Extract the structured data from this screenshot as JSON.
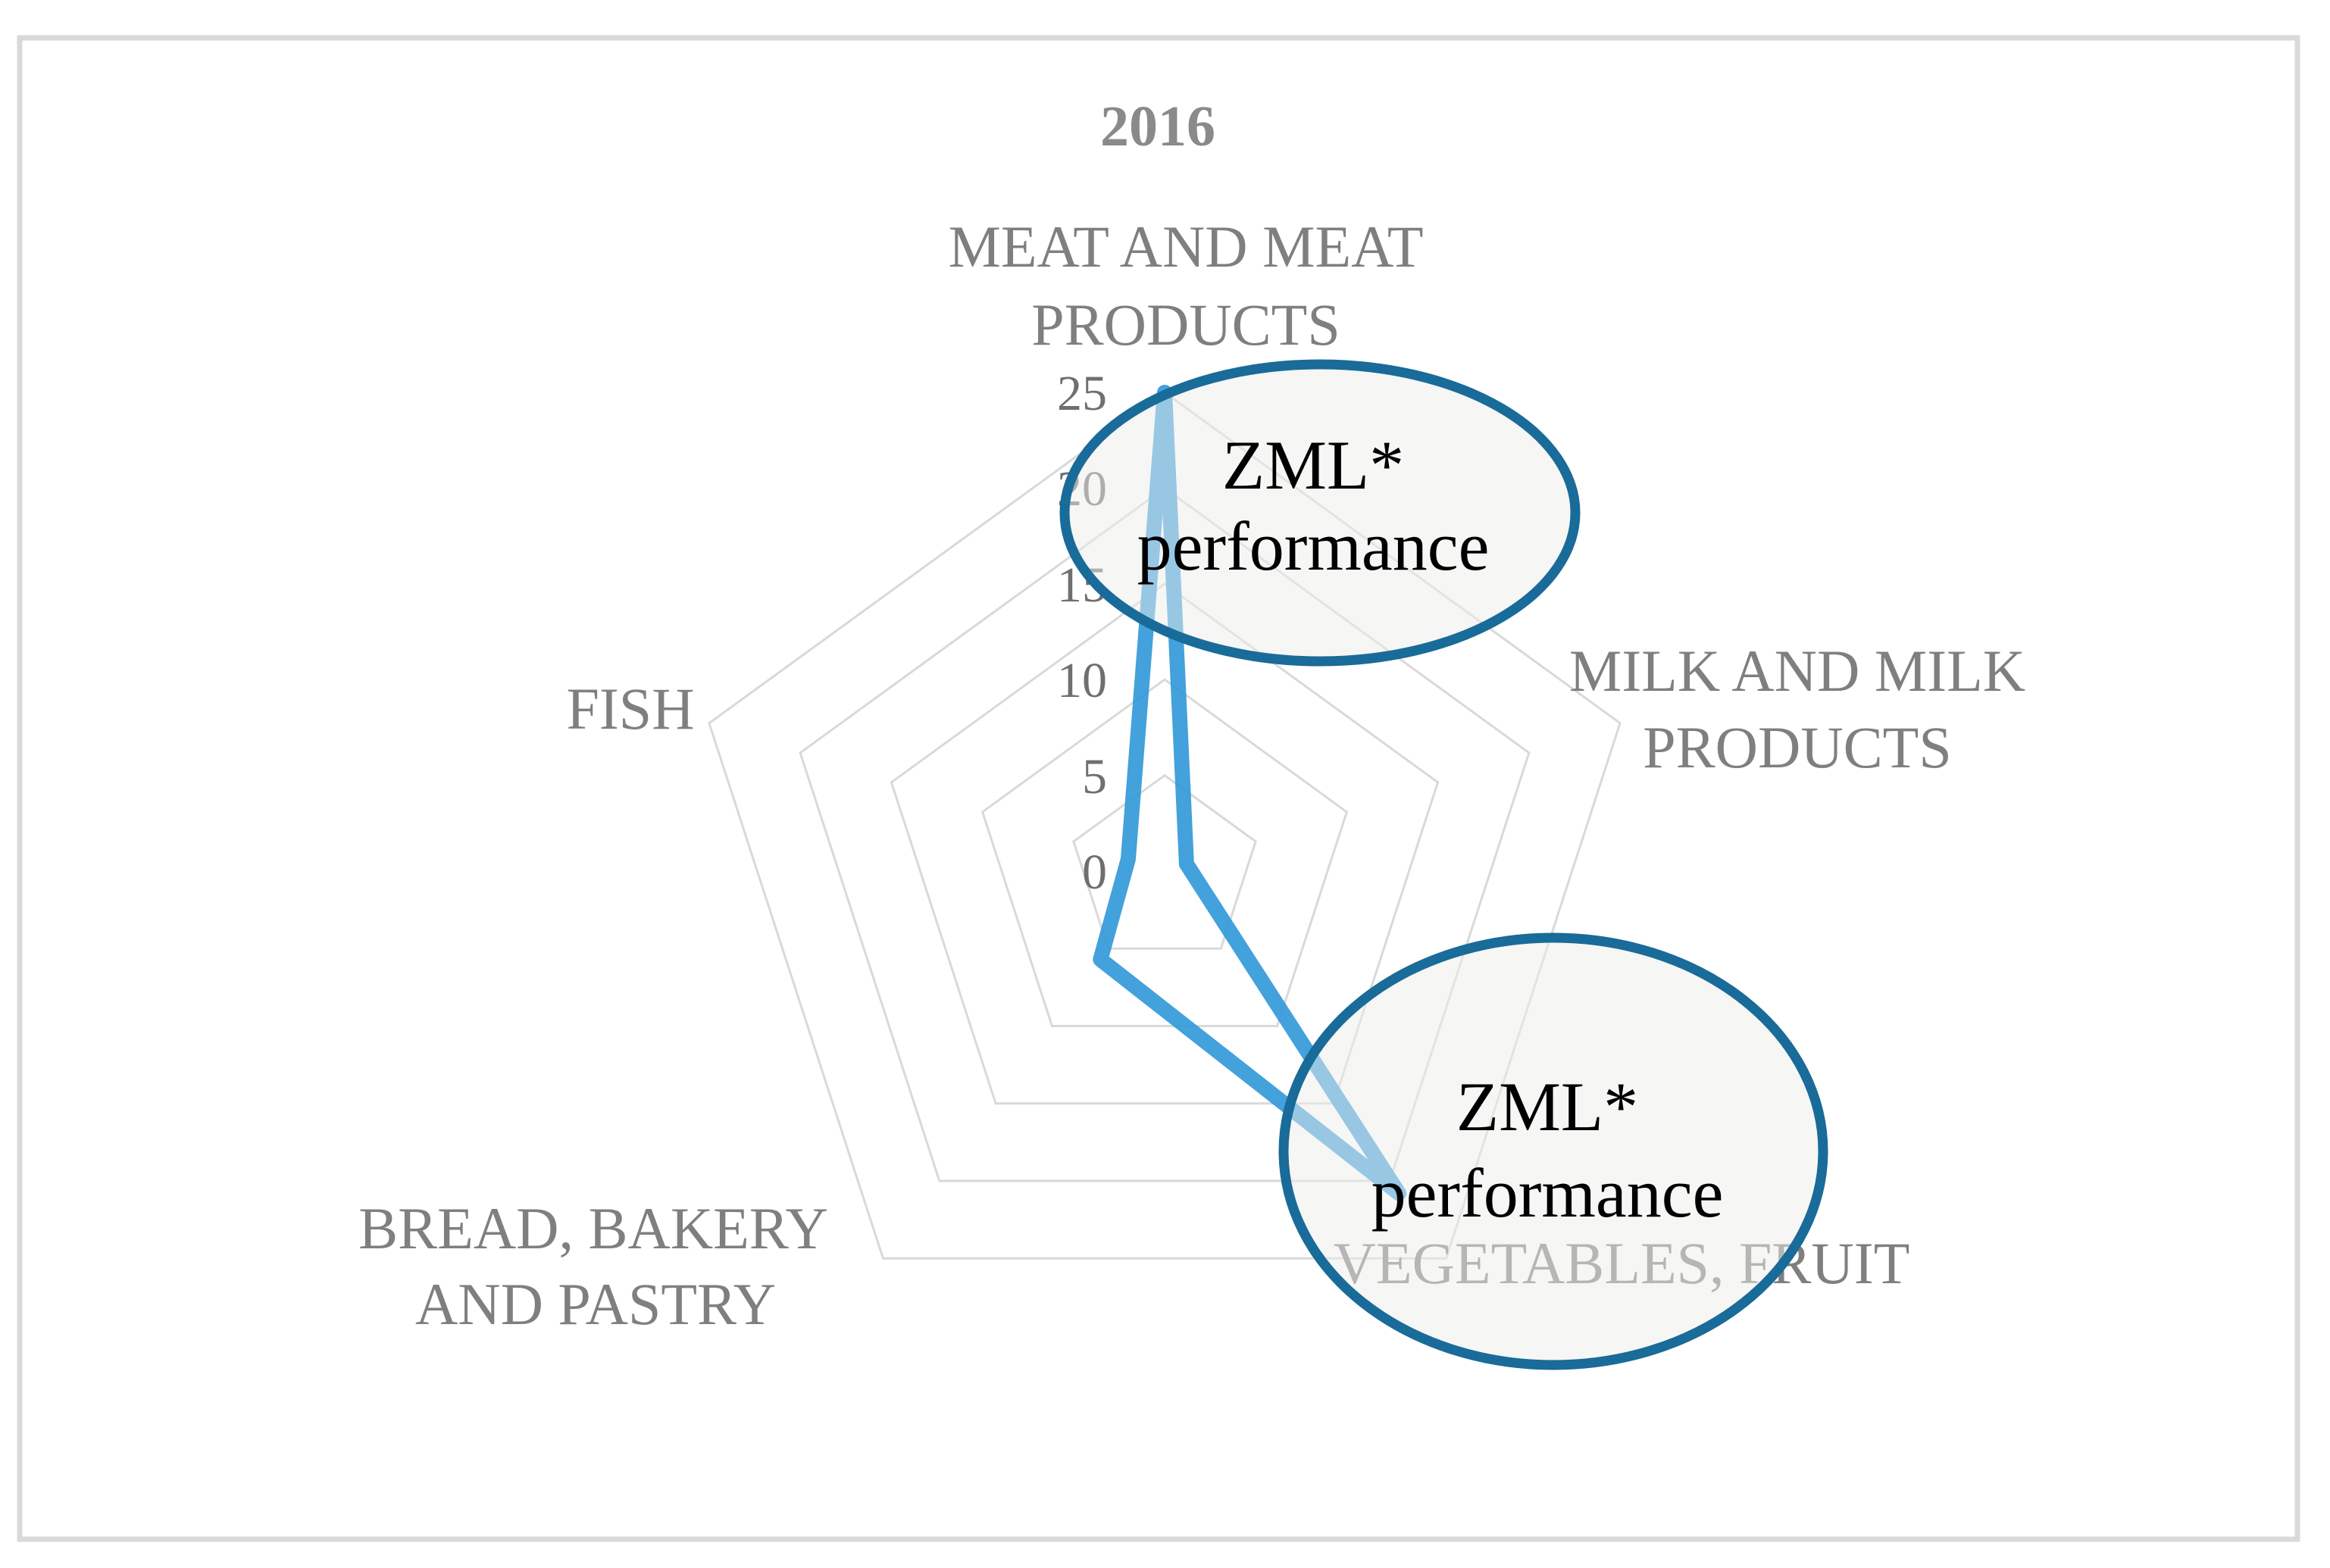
{
  "title": "2016",
  "chart_data": {
    "type": "radar",
    "title": "2016",
    "categories": [
      "MEAT AND MEAT PRODUCTS",
      "MILK AND MILK PRODUCTS",
      "VEGETABLES, FRUIT",
      "BREAD, BAKERY AND PASTRY",
      "FISH"
    ],
    "series": [
      {
        "name": "ZML* performance",
        "values": [
          25,
          1.2,
          20.8,
          5.7,
          2.0
        ]
      }
    ],
    "rmin": 0,
    "rmax": 25,
    "ring_step": 5,
    "tick_labels": [
      "25",
      "20",
      "15",
      "10",
      "5",
      "0"
    ],
    "tick_values": [
      25,
      20,
      15,
      10,
      5,
      0
    ],
    "grid": "concentric pentagons, no radial spokes",
    "legend_position": "none"
  },
  "axis_labels": {
    "meat": {
      "line1": "MEAT AND MEAT",
      "line2": "PRODUCTS"
    },
    "milk": {
      "line1": "MILK AND MILK",
      "line2": "PRODUCTS"
    },
    "vegetables": {
      "line1": "VEGETABLES, FRUIT"
    },
    "bread": {
      "line1": "BREAD, BAKERY",
      "line2": "AND PASTRY"
    },
    "fish": {
      "line1": "FISH"
    }
  },
  "annotations": [
    {
      "line1": "ZML*",
      "line2": "performance"
    },
    {
      "line1": "ZML*",
      "line2": "performance"
    }
  ],
  "colors": {
    "series_line": "#2f97d7",
    "grid": "#d9d9d9",
    "category_label": "#7f7f7f",
    "tick_label": "#6f6f6f",
    "title_gray": "#8a8a8a",
    "ellipse_stroke": "#196b99",
    "annotation_text": "#000000",
    "frame": "#d9d9d9",
    "background": "#ffffff"
  }
}
